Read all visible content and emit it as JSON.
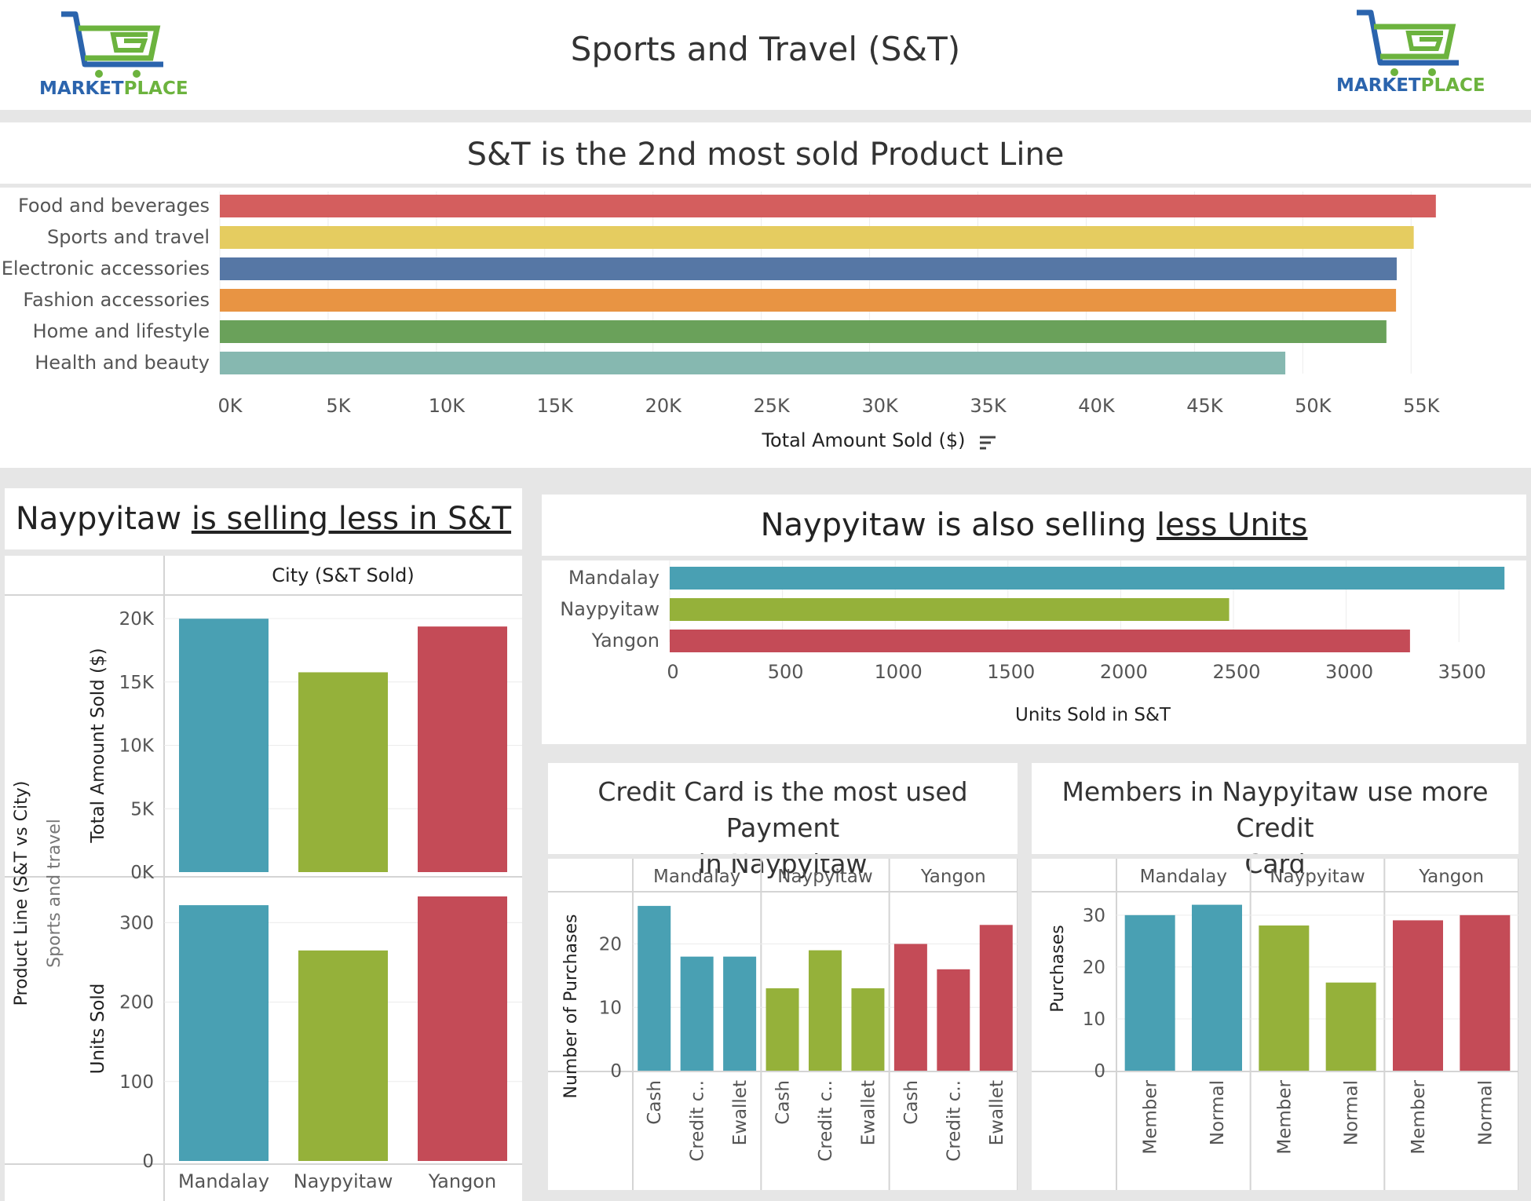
{
  "header": {
    "title": "Sports and Travel (S&T)",
    "logo_word_left": "MARKET",
    "logo_word_right": "PLACE"
  },
  "colors": {
    "teal": "#49a0b3",
    "olive": "#95b13a",
    "crimson": "#c44b57",
    "logo_blue": "#2b64ad",
    "logo_green": "#6cb33e"
  },
  "chart_data": [
    {
      "id": "product_lines",
      "type": "bar",
      "orientation": "horizontal",
      "title": "S&T is the 2nd most sold Product Line",
      "xlabel": "Total Amount Sold ($)",
      "categories": [
        "Food and beverages",
        "Sports and travel",
        "Electronic accessories",
        "Fashion accessories",
        "Home and lifestyle",
        "Health and beauty"
      ],
      "values": [
        56145,
        55123,
        54338,
        54306,
        53862,
        49194
      ],
      "colors": [
        "#d45e5e",
        "#e5cc60",
        "#5677a5",
        "#e89443",
        "#6aa15a",
        "#86b8b0"
      ],
      "xlim": [
        0,
        58000
      ],
      "ticks": [
        0,
        5000,
        10000,
        15000,
        20000,
        25000,
        30000,
        35000,
        40000,
        45000,
        50000,
        55000
      ],
      "tick_labels": [
        "0K",
        "5K",
        "10K",
        "15K",
        "20K",
        "25K",
        "30K",
        "35K",
        "40K",
        "45K",
        "50K",
        "55K"
      ]
    },
    {
      "id": "city_amount_units",
      "type": "bar",
      "title_plain": "Naypyitaw ",
      "title_underlined": "is selling less in S&T",
      "column_header": "City (S&T Sold)",
      "row_header": "Product Line (S&T vs City)",
      "row_value": "Sports and travel",
      "categories": [
        "Mandalay",
        "Naypyitaw",
        "Yangon"
      ],
      "colors": [
        "#49a0b3",
        "#95b13a",
        "#c44b57"
      ],
      "series": [
        {
          "name": "Total Amount Sold ($)",
          "values": [
            19988,
            15761,
            19373
          ],
          "ylim": [
            0,
            20000
          ],
          "ticks": [
            0,
            5000,
            10000,
            15000,
            20000
          ],
          "tick_labels": [
            "0K",
            "5K",
            "10K",
            "15K",
            "20K"
          ]
        },
        {
          "name": "Units Sold",
          "values": [
            322,
            265,
            333
          ],
          "ylim": [
            0,
            333
          ],
          "ticks": [
            0,
            100,
            200,
            300
          ],
          "tick_labels": [
            "0",
            "100",
            "200",
            "300"
          ]
        }
      ]
    },
    {
      "id": "units_by_city",
      "type": "bar",
      "orientation": "horizontal",
      "title_plain": "Naypyitaw is also selling ",
      "title_underlined": "less Units",
      "xlabel": "Units Sold in S&T",
      "categories": [
        "Mandalay",
        "Naypyitaw",
        "Yangon"
      ],
      "values": [
        3702,
        2481,
        3283
      ],
      "colors": [
        "#49a0b3",
        "#95b13a",
        "#c44b57"
      ],
      "xlim": [
        0,
        3750
      ],
      "ticks": [
        0,
        500,
        1000,
        1500,
        2000,
        2500,
        3000,
        3500
      ],
      "tick_labels": [
        "0",
        "500",
        "1000",
        "1500",
        "2000",
        "2500",
        "3000",
        "3500"
      ]
    },
    {
      "id": "payment",
      "type": "bar",
      "title_line1": "Credit Card is the most used Payment",
      "title_line2": "in Naypyitaw",
      "ylabel": "Number of Purchases",
      "groups": [
        "Mandalay",
        "Naypyitaw",
        "Yangon"
      ],
      "categories": [
        "Cash",
        "Credit c..",
        "Ewallet"
      ],
      "colors": [
        "#49a0b3",
        "#95b13a",
        "#c44b57"
      ],
      "values": [
        [
          26,
          18,
          18
        ],
        [
          13,
          19,
          13
        ],
        [
          20,
          16,
          23
        ]
      ],
      "ylim": [
        0,
        27
      ],
      "ticks": [
        0,
        10,
        20
      ],
      "tick_labels": [
        "0",
        "10",
        "20"
      ]
    },
    {
      "id": "customer_type",
      "type": "bar",
      "title_line1": "Members in Naypyitaw use more Credit",
      "title_line2": "Card",
      "ylabel": "Purchases",
      "groups": [
        "Mandalay",
        "Naypyitaw",
        "Yangon"
      ],
      "categories": [
        "Member",
        "Normal"
      ],
      "colors": [
        "#49a0b3",
        "#95b13a",
        "#c44b57"
      ],
      "values": [
        [
          30,
          32
        ],
        [
          28,
          17
        ],
        [
          29,
          30
        ]
      ],
      "ylim": [
        0,
        33
      ],
      "ticks": [
        0,
        10,
        20,
        30
      ],
      "tick_labels": [
        "0",
        "10",
        "20",
        "30"
      ]
    }
  ]
}
